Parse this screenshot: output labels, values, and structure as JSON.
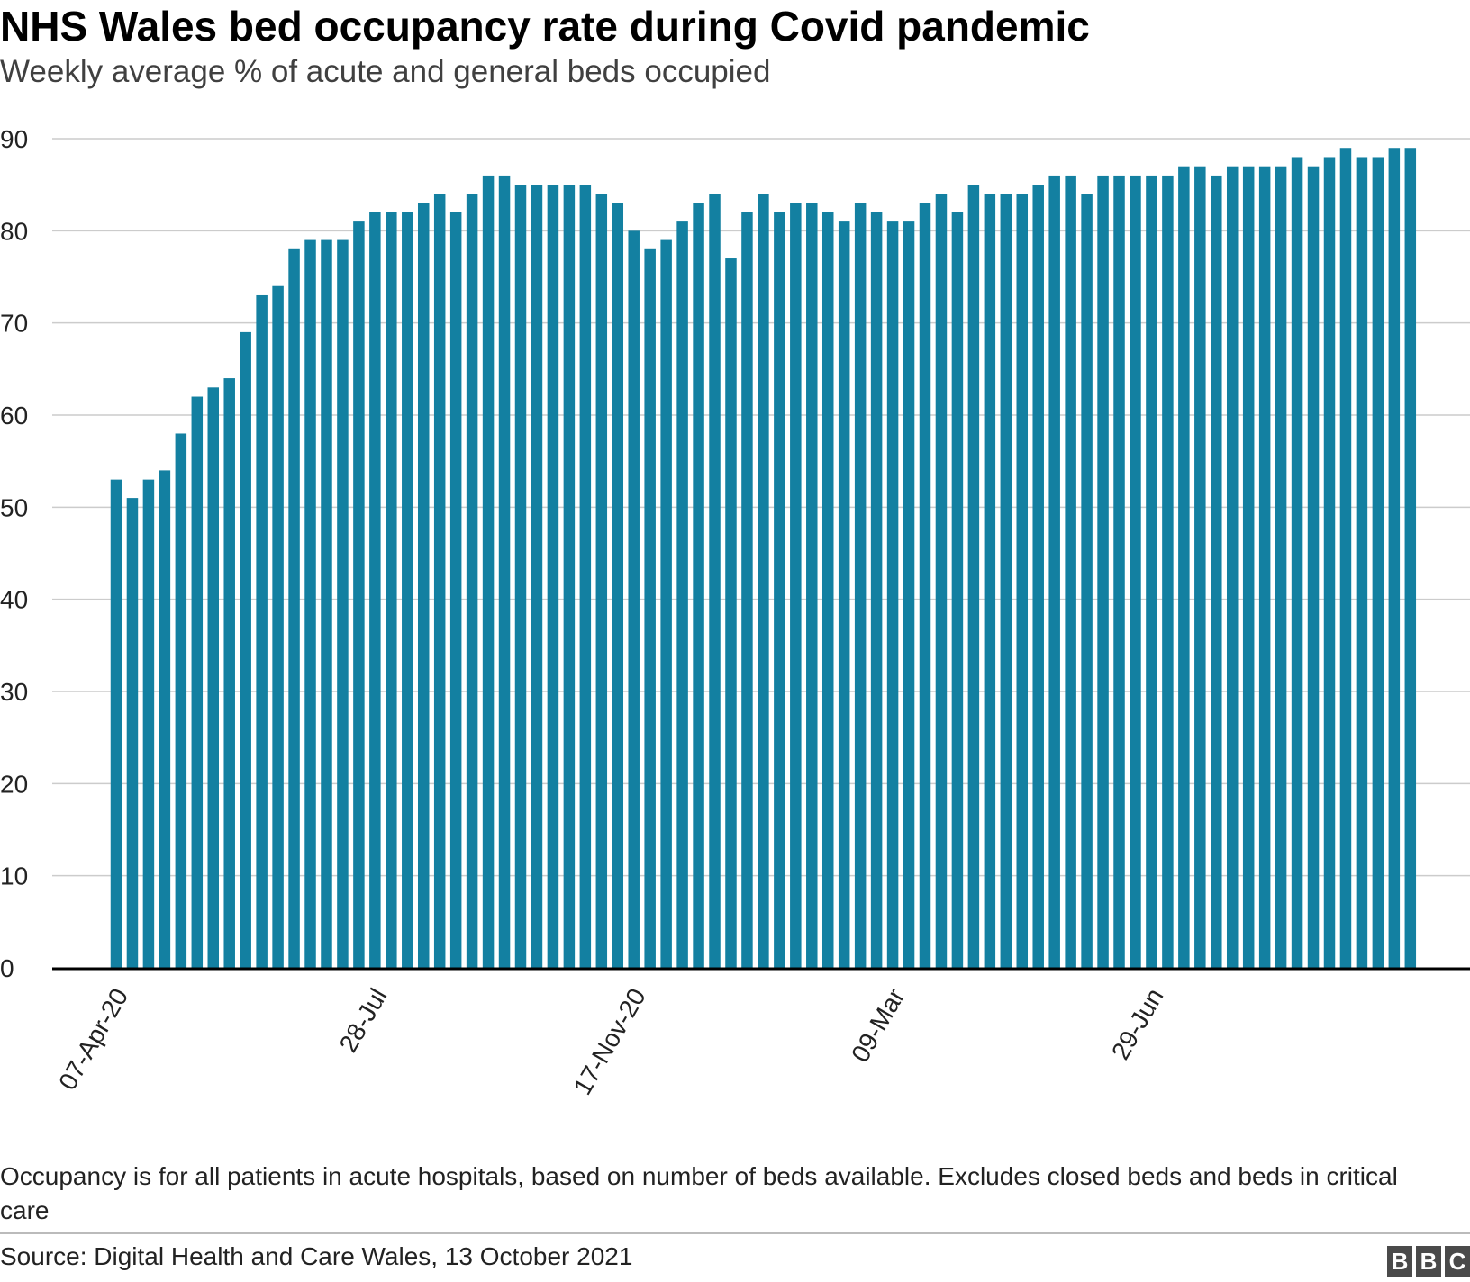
{
  "title": "NHS Wales bed occupancy rate during Covid pandemic",
  "subtitle": "Weekly average % of acute and general beds occupied",
  "note": "Occupancy is for all patients in acute hospitals, based on number of beds available. Excludes closed beds and beds in critical care",
  "source": "Source: Digital Health and Care Wales, 13 October 2021",
  "logo": [
    "B",
    "B",
    "C"
  ],
  "colors": {
    "bar": "#1380a1",
    "grid": "#cccccc",
    "axis": "#000000"
  },
  "chart_data": {
    "type": "bar",
    "x_tick_labels": [
      {
        "index": 0,
        "label": "07-Apr-20"
      },
      {
        "index": 16,
        "label": "28-Jul"
      },
      {
        "index": 32,
        "label": "17-Nov-20"
      },
      {
        "index": 48,
        "label": "09-Mar"
      },
      {
        "index": 64,
        "label": "29-Jun"
      }
    ],
    "values": [
      53,
      51,
      53,
      54,
      58,
      62,
      63,
      64,
      69,
      73,
      74,
      78,
      79,
      79,
      79,
      81,
      82,
      82,
      82,
      83,
      84,
      82,
      84,
      86,
      86,
      85,
      85,
      85,
      85,
      85,
      84,
      83,
      80,
      78,
      79,
      81,
      83,
      84,
      77,
      82,
      84,
      82,
      83,
      83,
      82,
      81,
      83,
      82,
      81,
      81,
      83,
      84,
      82,
      85,
      84,
      84,
      84,
      85,
      86,
      86,
      84,
      86,
      86,
      86,
      86,
      86,
      87,
      87,
      86,
      87,
      87,
      87,
      87,
      88,
      87,
      88,
      89,
      88,
      88,
      89,
      89
    ],
    "ylim": [
      0,
      90
    ],
    "yticks": [
      0,
      10,
      20,
      30,
      40,
      50,
      60,
      70,
      80,
      90
    ],
    "grid": true
  }
}
